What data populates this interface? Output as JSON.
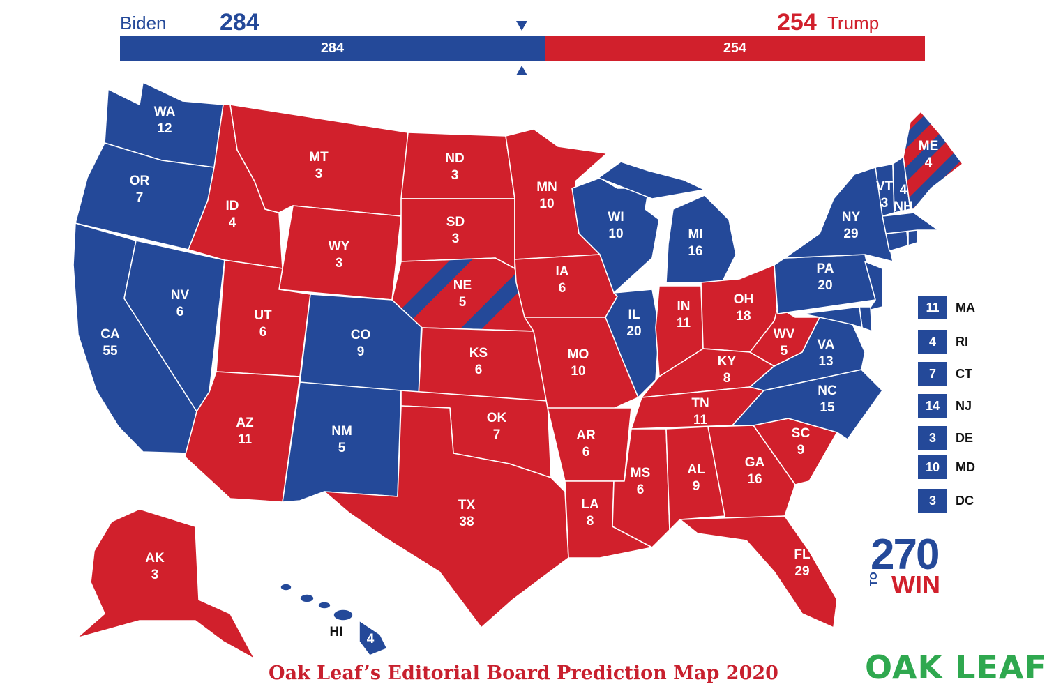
{
  "header": {
    "left_name": "Biden",
    "left_votes": "284",
    "right_votes": "254",
    "right_name": "Trump"
  },
  "bar": {
    "dem_label": "284",
    "rep_label": "254",
    "dem_share": 0.5279
  },
  "colors": {
    "dem": "#244999",
    "rep": "#d1202c"
  },
  "states": {
    "WA": {
      "abbr": "WA",
      "ev": "12"
    },
    "OR": {
      "abbr": "OR",
      "ev": "7"
    },
    "CA": {
      "abbr": "CA",
      "ev": "55"
    },
    "NV": {
      "abbr": "NV",
      "ev": "6"
    },
    "ID": {
      "abbr": "ID",
      "ev": "4"
    },
    "MT": {
      "abbr": "MT",
      "ev": "3"
    },
    "WY": {
      "abbr": "WY",
      "ev": "3"
    },
    "UT": {
      "abbr": "UT",
      "ev": "6"
    },
    "AZ": {
      "abbr": "AZ",
      "ev": "11"
    },
    "CO": {
      "abbr": "CO",
      "ev": "9"
    },
    "NM": {
      "abbr": "NM",
      "ev": "5"
    },
    "ND": {
      "abbr": "ND",
      "ev": "3"
    },
    "SD": {
      "abbr": "SD",
      "ev": "3"
    },
    "NE": {
      "abbr": "NE",
      "ev": "5"
    },
    "KS": {
      "abbr": "KS",
      "ev": "6"
    },
    "OK": {
      "abbr": "OK",
      "ev": "7"
    },
    "TX": {
      "abbr": "TX",
      "ev": "38"
    },
    "MN": {
      "abbr": "MN",
      "ev": "10"
    },
    "IA": {
      "abbr": "IA",
      "ev": "6"
    },
    "MO": {
      "abbr": "MO",
      "ev": "10"
    },
    "AR": {
      "abbr": "AR",
      "ev": "6"
    },
    "LA": {
      "abbr": "LA",
      "ev": "8"
    },
    "WI": {
      "abbr": "WI",
      "ev": "10"
    },
    "IL": {
      "abbr": "IL",
      "ev": "20"
    },
    "MI": {
      "abbr": "MI",
      "ev": "16"
    },
    "IN": {
      "abbr": "IN",
      "ev": "11"
    },
    "OH": {
      "abbr": "OH",
      "ev": "18"
    },
    "KY": {
      "abbr": "KY",
      "ev": "8"
    },
    "TN": {
      "abbr": "TN",
      "ev": "11"
    },
    "MS": {
      "abbr": "MS",
      "ev": "6"
    },
    "AL": {
      "abbr": "AL",
      "ev": "9"
    },
    "GA": {
      "abbr": "GA",
      "ev": "16"
    },
    "FL": {
      "abbr": "FL",
      "ev": "29"
    },
    "SC": {
      "abbr": "SC",
      "ev": "9"
    },
    "NC": {
      "abbr": "NC",
      "ev": "15"
    },
    "VA": {
      "abbr": "VA",
      "ev": "13"
    },
    "WV": {
      "abbr": "WV",
      "ev": "5"
    },
    "PA": {
      "abbr": "PA",
      "ev": "20"
    },
    "NY": {
      "abbr": "NY",
      "ev": "29"
    },
    "VT": {
      "abbr": "VT",
      "ev": "3"
    },
    "NH": {
      "abbr": "NH",
      "ev": "4"
    },
    "ME": {
      "abbr": "ME",
      "ev": "4"
    },
    "AK": {
      "abbr": "AK",
      "ev": "3"
    },
    "HI": {
      "abbr": "HI",
      "ev": "4"
    }
  },
  "northeast": [
    {
      "ev": "11",
      "abbr": "MA"
    },
    {
      "ev": "4",
      "abbr": "RI"
    },
    {
      "ev": "7",
      "abbr": "CT"
    },
    {
      "ev": "14",
      "abbr": "NJ"
    },
    {
      "ev": "3",
      "abbr": "DE"
    },
    {
      "ev": "10",
      "abbr": "MD"
    },
    {
      "ev": "3",
      "abbr": "DC"
    }
  ],
  "caption": "Oak Leaf’s Editorial Board Prediction Map 2020",
  "logos": {
    "num": "270",
    "to": "TO",
    "win": "WIN",
    "oak": "OAK LEAF"
  }
}
